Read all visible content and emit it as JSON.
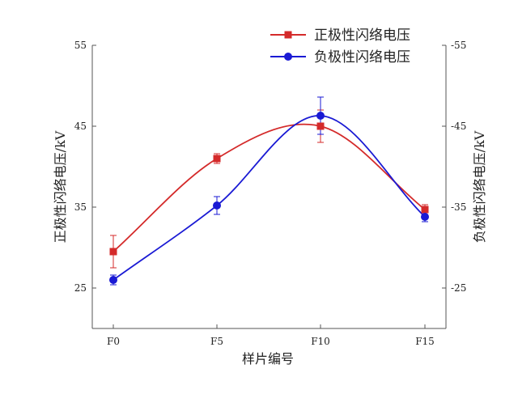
{
  "chart_data": {
    "type": "line",
    "categories": [
      "F0",
      "F5",
      "F10",
      "F15"
    ],
    "xlabel": "样片编号",
    "ylabel_left": "正极性闪络电压/kV",
    "ylabel_right": "负极性闪络电压/kV",
    "ylim_left": [
      20,
      55
    ],
    "ylim_right": [
      -20,
      -55
    ],
    "yticks_left": [
      "25",
      "35",
      "45",
      "55"
    ],
    "yticks_right": [
      "-25",
      "-35",
      "-45",
      "-55"
    ],
    "legend_position": "top-right",
    "series": [
      {
        "name": "正极性闪络电压",
        "axis": "left",
        "color": "#d42a2a",
        "marker": "square",
        "values": [
          29.5,
          41.0,
          45.0,
          34.7
        ],
        "errors": [
          2.0,
          0.6,
          2.0,
          0.6
        ]
      },
      {
        "name": "负极性闪络电压",
        "axis": "right",
        "color": "#1a1ad4",
        "marker": "circle",
        "values": [
          -26.0,
          -35.2,
          -46.3,
          -33.8
        ],
        "errors": [
          0.6,
          1.1,
          2.3,
          0.6
        ]
      }
    ]
  }
}
